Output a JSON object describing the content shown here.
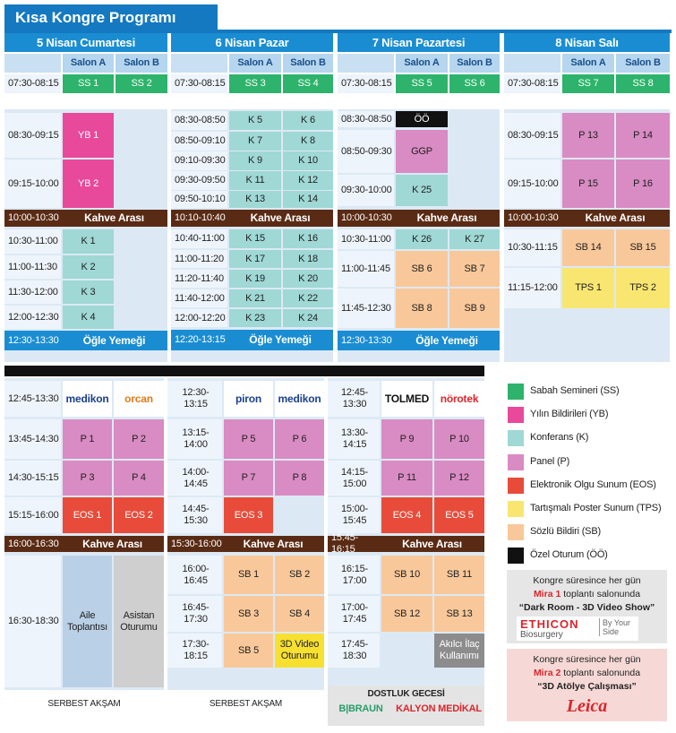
{
  "title": "Kısa Kongre Programı",
  "days": [
    {
      "name": "5 Nisan Cumartesi",
      "salons": [
        "Salon A",
        "Salon B"
      ],
      "morning": {
        "time": "07:30-08:15",
        "a": {
          "label": "SS 1",
          "color": "#2db36b"
        },
        "b": {
          "label": "SS 2",
          "color": "#2db36b"
        }
      },
      "rows": [
        {
          "time": "08:30-09:15",
          "a": {
            "label": "YB 1",
            "color": "#e8499a"
          }
        },
        {
          "time": "09:15-10:00",
          "a": {
            "label": "YB 2",
            "color": "#e8499a"
          }
        },
        {
          "time": "10:00-10:30",
          "span": "Kahve Arası",
          "color": "#5a2b14"
        },
        {
          "time": "10:30-11:00",
          "a": {
            "label": "K 1",
            "color": "#9fd8d5"
          }
        },
        {
          "time": "11:00-11:30",
          "a": {
            "label": "K 2",
            "color": "#9fd8d5"
          }
        },
        {
          "time": "11:30-12:00",
          "a": {
            "label": "K 3",
            "color": "#9fd8d5"
          }
        },
        {
          "time": "12:00-12:30",
          "a": {
            "label": "K 4",
            "color": "#9fd8d5"
          }
        },
        {
          "time": "12:30-13:30",
          "span": "Öğle Yemeği",
          "color": "#1a8dd2"
        }
      ]
    },
    {
      "name": "6 Nisan Pazar",
      "salons": [
        "Salon A",
        "Salon B"
      ],
      "morning": {
        "time": "07:30-08:15",
        "a": {
          "label": "SS 3",
          "color": "#2db36b"
        },
        "b": {
          "label": "SS 4",
          "color": "#2db36b"
        }
      },
      "rows": [
        {
          "time": "08:30-08:50",
          "a": {
            "label": "K 5",
            "color": "#9fd8d5"
          },
          "b": {
            "label": "K 6",
            "color": "#9fd8d5"
          }
        },
        {
          "time": "08:50-09:10",
          "a": {
            "label": "K 7",
            "color": "#9fd8d5"
          },
          "b": {
            "label": "K 8",
            "color": "#9fd8d5"
          }
        },
        {
          "time": "09:10-09:30",
          "a": {
            "label": "K 9",
            "color": "#9fd8d5"
          },
          "b": {
            "label": "K 10",
            "color": "#9fd8d5"
          }
        },
        {
          "time": "09:30-09:50",
          "a": {
            "label": "K 11",
            "color": "#9fd8d5"
          },
          "b": {
            "label": "K 12",
            "color": "#9fd8d5"
          }
        },
        {
          "time": "09:50-10:10",
          "a": {
            "label": "K 13",
            "color": "#9fd8d5"
          },
          "b": {
            "label": "K 14",
            "color": "#9fd8d5"
          }
        },
        {
          "time": "10:10-10:40",
          "span": "Kahve Arası",
          "color": "#5a2b14"
        },
        {
          "time": "10:40-11:00",
          "a": {
            "label": "K 15",
            "color": "#9fd8d5"
          },
          "b": {
            "label": "K 16",
            "color": "#9fd8d5"
          }
        },
        {
          "time": "11:00-11:20",
          "a": {
            "label": "K 17",
            "color": "#9fd8d5"
          },
          "b": {
            "label": "K 18",
            "color": "#9fd8d5"
          }
        },
        {
          "time": "11:20-11:40",
          "a": {
            "label": "K 19",
            "color": "#9fd8d5"
          },
          "b": {
            "label": "K 20",
            "color": "#9fd8d5"
          }
        },
        {
          "time": "11:40-12:00",
          "a": {
            "label": "K 21",
            "color": "#9fd8d5"
          },
          "b": {
            "label": "K 22",
            "color": "#9fd8d5"
          }
        },
        {
          "time": "12:00-12:20",
          "a": {
            "label": "K 23",
            "color": "#9fd8d5"
          },
          "b": {
            "label": "K 24",
            "color": "#9fd8d5"
          }
        },
        {
          "time": "12:20-13:15",
          "span": "Öğle Yemeği",
          "color": "#1a8dd2"
        }
      ]
    },
    {
      "name": "7 Nisan Pazartesi",
      "salons": [
        "Salon A",
        "Salon B"
      ],
      "morning": {
        "time": "07:30-08:15",
        "a": {
          "label": "SS 5",
          "color": "#2db36b"
        },
        "b": {
          "label": "SS 6",
          "color": "#2db36b"
        }
      },
      "rows": [
        {
          "time": "08:30-08:50",
          "a": {
            "label": "ÖÖ",
            "color": "#111111"
          }
        },
        {
          "time": "08:50-09:30",
          "a": {
            "label": "GGP",
            "color": "#d98bc3"
          }
        },
        {
          "time": "09:30-10:00",
          "a": {
            "label": "K 25",
            "color": "#9fd8d5"
          }
        },
        {
          "time": "10:00-10:30",
          "span": "Kahve Arası",
          "color": "#5a2b14"
        },
        {
          "time": "10:30-11:00",
          "a": {
            "label": "K 26",
            "color": "#9fd8d5"
          },
          "b": {
            "label": "K 27",
            "color": "#9fd8d5"
          }
        },
        {
          "time": "11:00-11:45",
          "a": {
            "label": "SB 6",
            "color": "#f9c89a"
          },
          "b": {
            "label": "SB 7",
            "color": "#f9c89a"
          }
        },
        {
          "time": "11:45-12:30",
          "a": {
            "label": "SB 8",
            "color": "#f9c89a"
          },
          "b": {
            "label": "SB 9",
            "color": "#f9c89a"
          }
        },
        {
          "time": "12:30-13:30",
          "span": "Öğle Yemeği",
          "color": "#1a8dd2"
        }
      ]
    },
    {
      "name": "8 Nisan Salı",
      "salons": [
        "Salon A",
        "Salon B"
      ],
      "morning": {
        "time": "07:30-08:15",
        "a": {
          "label": "SS 7",
          "color": "#2db36b"
        },
        "b": {
          "label": "SS 8",
          "color": "#2db36b"
        }
      },
      "rows": [
        {
          "time": "08:30-09:15",
          "a": {
            "label": "P 13",
            "color": "#d98bc3"
          },
          "b": {
            "label": "P 14",
            "color": "#d98bc3"
          }
        },
        {
          "time": "09:15-10:00",
          "a": {
            "label": "P 15",
            "color": "#d98bc3"
          },
          "b": {
            "label": "P 16",
            "color": "#d98bc3"
          }
        },
        {
          "time": "10:00-10:30",
          "span": "Kahve Arası",
          "color": "#5a2b14"
        },
        {
          "time": "10:30-11:15",
          "a": {
            "label": "SB 14",
            "color": "#f9c89a"
          },
          "b": {
            "label": "SB 15",
            "color": "#f9c89a"
          }
        },
        {
          "time": "11:15-12:00",
          "a": {
            "label": "TPS 1",
            "color": "#f8e671"
          },
          "b": {
            "label": "TPS 2",
            "color": "#f8e671"
          }
        }
      ]
    }
  ],
  "afternoons": [
    {
      "rows": [
        {
          "time": "12:45-13:30",
          "logos": [
            {
              "text": "medikon",
              "color": "#1b3f8c"
            },
            {
              "text": "orcan",
              "color": "#e27a18"
            }
          ]
        },
        {
          "time": "13:45-14:30",
          "a": {
            "label": "P 1",
            "color": "#d98bc3"
          },
          "b": {
            "label": "P 2",
            "color": "#d98bc3"
          }
        },
        {
          "time": "14:30-15:15",
          "a": {
            "label": "P 3",
            "color": "#d98bc3"
          },
          "b": {
            "label": "P 4",
            "color": "#d98bc3"
          }
        },
        {
          "time": "15:15-16:00",
          "a": {
            "label": "EOS 1",
            "color": "#e84b3a"
          },
          "b": {
            "label": "EOS 2",
            "color": "#e84b3a"
          }
        },
        {
          "time": "16:00-16:30",
          "span": "Kahve Arası",
          "color": "#5a2b14"
        },
        {
          "time": "16:30-18:30",
          "a": {
            "label": "Aile Toplantısı",
            "color": "#b9d0e6"
          },
          "b": {
            "label": "Asistan Oturumu",
            "color": "#cfcfcf"
          }
        }
      ],
      "evening": {
        "label": "SERBEST AKŞAM"
      }
    },
    {
      "rows": [
        {
          "time": "12:30-13:15",
          "logos": [
            {
              "text": "piron",
              "color": "#1b3f8c"
            },
            {
              "text": "medikon",
              "color": "#1b3f8c"
            }
          ]
        },
        {
          "time": "13:15-14:00",
          "a": {
            "label": "P 5",
            "color": "#d98bc3"
          },
          "b": {
            "label": "P 6",
            "color": "#d98bc3"
          }
        },
        {
          "time": "14:00-14:45",
          "a": {
            "label": "P 7",
            "color": "#d98bc3"
          },
          "b": {
            "label": "P 8",
            "color": "#d98bc3"
          }
        },
        {
          "time": "14:45-15:30",
          "a": {
            "label": "EOS 3",
            "color": "#e84b3a"
          }
        },
        {
          "time": "15:30-16:00",
          "span": "Kahve Arası",
          "color": "#5a2b14"
        },
        {
          "time": "16:00-16:45",
          "a": {
            "label": "SB 1",
            "color": "#f9c89a"
          },
          "b": {
            "label": "SB 2",
            "color": "#f9c89a"
          }
        },
        {
          "time": "16:45-17:30",
          "a": {
            "label": "SB 3",
            "color": "#f9c89a"
          },
          "b": {
            "label": "SB 4",
            "color": "#f9c89a"
          }
        },
        {
          "time": "17:30-18:15",
          "a": {
            "label": "SB 5",
            "color": "#f9c89a"
          },
          "b": {
            "label": "3D Video Oturumu",
            "color": "#f8e030"
          }
        }
      ],
      "evening": {
        "label": "SERBEST AKŞAM"
      }
    },
    {
      "rows": [
        {
          "time": "12:45-13:30",
          "logos": [
            {
              "text": "TOLMED",
              "color": "#111111"
            },
            {
              "text": "nörotek",
              "color": "#d9262c"
            }
          ]
        },
        {
          "time": "13:30-14:15",
          "a": {
            "label": "P 9",
            "color": "#d98bc3"
          },
          "b": {
            "label": "P 10",
            "color": "#d98bc3"
          }
        },
        {
          "time": "14:15-15:00",
          "a": {
            "label": "P 11",
            "color": "#d98bc3"
          },
          "b": {
            "label": "P 12",
            "color": "#d98bc3"
          }
        },
        {
          "time": "15:00-15:45",
          "a": {
            "label": "EOS 4",
            "color": "#e84b3a"
          },
          "b": {
            "label": "EOS 5",
            "color": "#e84b3a"
          }
        },
        {
          "time": "15:45-16:15",
          "span": "Kahve Arası",
          "color": "#5a2b14"
        },
        {
          "time": "16:15-17:00",
          "a": {
            "label": "SB 10",
            "color": "#f9c89a"
          },
          "b": {
            "label": "SB 11",
            "color": "#f9c89a"
          }
        },
        {
          "time": "17:00-17:45",
          "a": {
            "label": "SB 12",
            "color": "#f9c89a"
          },
          "b": {
            "label": "SB 13",
            "color": "#f9c89a"
          }
        },
        {
          "time": "17:45-18:30",
          "b": {
            "label": "Akılcı İlaç Kullanımı",
            "color": "#8c8c8c"
          }
        }
      ],
      "evening": {
        "label": "DOSTLUK GECESİ",
        "sponsors": [
          {
            "text": "B|BRAUN",
            "color": "#2a9d6a"
          },
          {
            "text": "KALYON MEDİKAL",
            "color": "#d9262c"
          }
        ]
      }
    }
  ],
  "legend": [
    {
      "label": "Sabah Semineri (SS)",
      "color": "#2db36b"
    },
    {
      "label": "Yılın Bildirileri (YB)",
      "color": "#e8499a"
    },
    {
      "label": "Konferans (K)",
      "color": "#9fd8d5"
    },
    {
      "label": "Panel (P)",
      "color": "#d98bc3"
    },
    {
      "label": "Elektronik Olgu Sunum (EOS)",
      "color": "#e84b3a"
    },
    {
      "label": "Tartışmalı Poster Sunum (TPS)",
      "color": "#f8e671"
    },
    {
      "label": "Sözlü Bildiri (SB)",
      "color": "#f9c89a"
    },
    {
      "label": "Özel Oturum (ÖÖ)",
      "color": "#111111"
    }
  ],
  "promos": [
    {
      "line1": "Kongre süresince her gün",
      "venue": "Mira 1",
      "venue_rest": "toplantı salonunda",
      "event": "“Dark Room - 3D Video Show”",
      "logo": "ETHICON",
      "logo_sub": "Biosurgery",
      "logo_tag": "By Your Side"
    },
    {
      "line1": "Kongre süresince her gün",
      "venue": "Mira 2",
      "venue_rest": "toplantı salonunda",
      "event": "“3D Atölye Çalışması”",
      "logo": "Leica"
    }
  ]
}
